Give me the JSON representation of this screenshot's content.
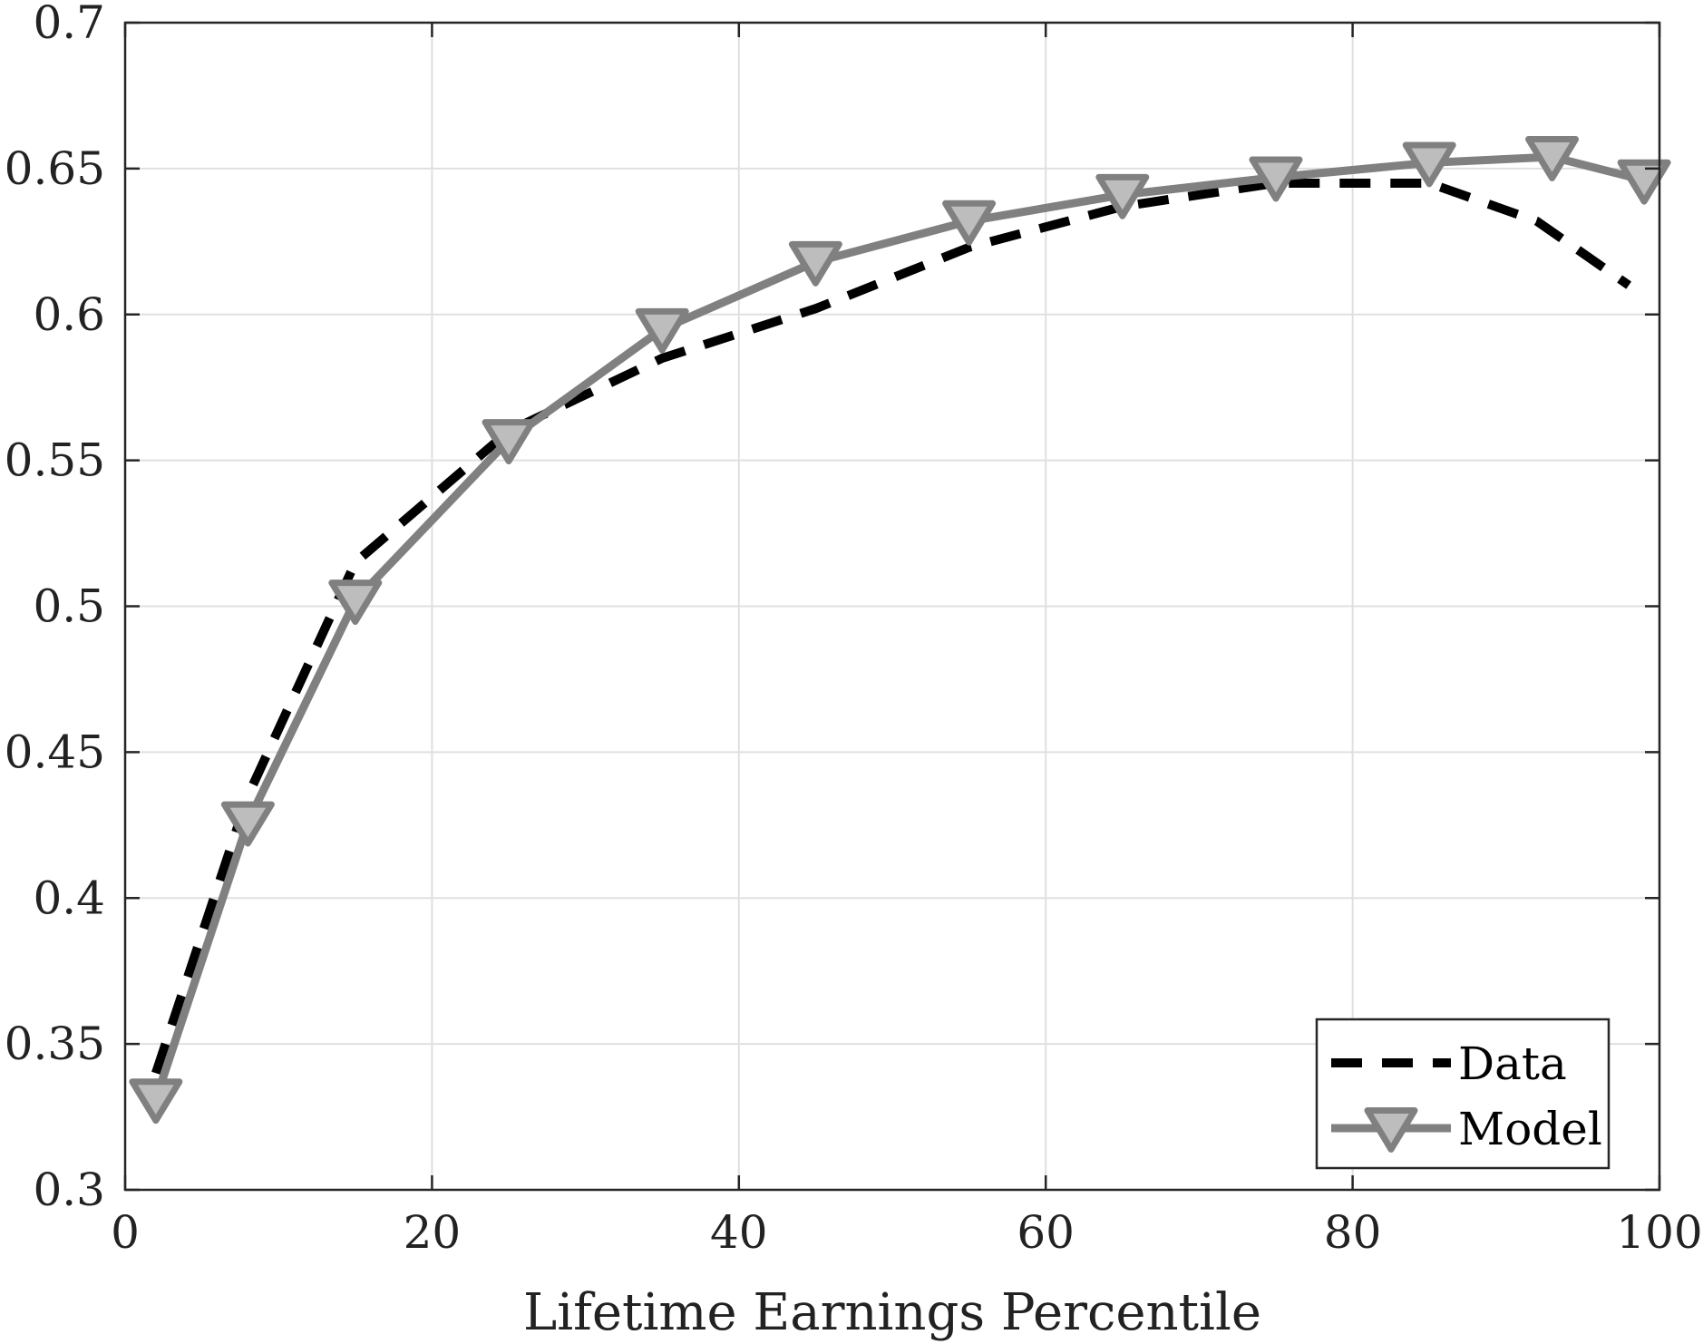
{
  "chart_data": {
    "type": "line",
    "title": "",
    "xlabel": "Lifetime Earnings Percentile",
    "ylabel": "",
    "xlim": [
      0,
      100
    ],
    "ylim": [
      0.3,
      0.7
    ],
    "xticks": [
      0,
      20,
      40,
      60,
      80,
      100
    ],
    "xtick_labels": [
      "0",
      "20",
      "40",
      "60",
      "80",
      "100"
    ],
    "yticks": [
      0.3,
      0.35,
      0.4,
      0.45,
      0.5,
      0.55,
      0.6,
      0.65,
      0.7
    ],
    "ytick_labels": [
      "0.3",
      "0.35",
      "0.4",
      "0.45",
      "0.5",
      "0.55",
      "0.6",
      "0.65",
      "0.7"
    ],
    "grid": true,
    "legend_position": "bottom-right",
    "series": [
      {
        "name": "Data",
        "style": "dashed",
        "color": "#000000",
        "marker": "none",
        "x": [
          2,
          8,
          15,
          25,
          35,
          45,
          55,
          65,
          75,
          85,
          92,
          98
        ],
        "y": [
          0.34,
          0.435,
          0.515,
          0.56,
          0.585,
          0.602,
          0.623,
          0.637,
          0.645,
          0.645,
          0.632,
          0.61
        ]
      },
      {
        "name": "Model",
        "style": "solid",
        "color": "#808080",
        "marker": "triangle-down",
        "marker_fill": "#bdbdbd",
        "x": [
          2,
          8,
          15,
          25,
          35,
          45,
          55,
          65,
          75,
          85,
          93,
          99
        ],
        "y": [
          0.331,
          0.426,
          0.502,
          0.557,
          0.595,
          0.618,
          0.632,
          0.641,
          0.647,
          0.652,
          0.654,
          0.646
        ]
      }
    ]
  }
}
